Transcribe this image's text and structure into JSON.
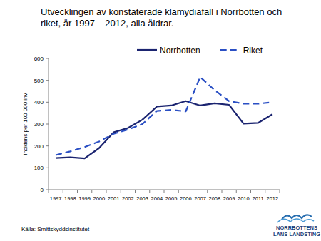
{
  "chart_data": {
    "type": "line",
    "title": "Utvecklingen av konstaterade klamydiafall i Norrbotten och riket, år 1997 – 2012, alla åldrar.",
    "y_label": "Incidens per 100 000 inv",
    "source": "Källa: Smittskyddsinstitutet",
    "logo_text": [
      "NORRBOTTENS",
      "LÄNS LANDSTING"
    ],
    "categories": [
      "1997",
      "1998",
      "1999",
      "2000",
      "2001",
      "2002",
      "2003",
      "2004",
      "2005",
      "2006",
      "2007",
      "2008",
      "2009",
      "2010",
      "2011",
      "2012"
    ],
    "series": [
      {
        "name": "Norrbotten",
        "color": "#1b2470",
        "line_style": "solid",
        "values": [
          145,
          148,
          143,
          190,
          262,
          282,
          320,
          380,
          385,
          405,
          385,
          395,
          388,
          302,
          305,
          345
        ]
      },
      {
        "name": "Riket",
        "color": "#2a4fc4",
        "line_style": "dashed",
        "values": [
          158,
          175,
          195,
          220,
          255,
          275,
          300,
          360,
          365,
          358,
          515,
          455,
          405,
          393,
          393,
          400
        ]
      }
    ],
    "ylim": [
      0,
      600
    ],
    "yticks": [
      0,
      100,
      200,
      300,
      400,
      500,
      600
    ],
    "grid": false,
    "legend": "top"
  }
}
